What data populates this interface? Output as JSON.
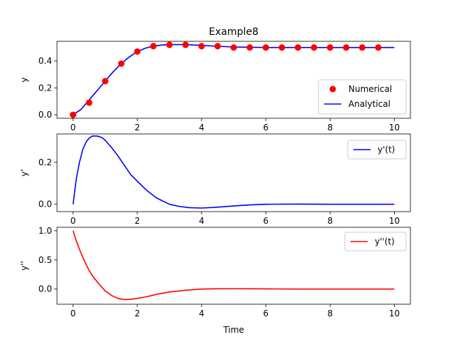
{
  "chart_data": [
    {
      "type": "scatter+line",
      "title": "Example8",
      "xlabel": "",
      "ylabel": "y",
      "xlim": [
        -0.5,
        10.5
      ],
      "ylim": [
        -0.026,
        0.546
      ],
      "xticks": [
        "0",
        "2",
        "4",
        "6",
        "8",
        "10"
      ],
      "yticks": [
        "0.0",
        "0.2",
        "0.4"
      ],
      "legend_position": "lower-right",
      "series": [
        {
          "name": "Numerical",
          "kind": "markers",
          "color": "#ff0000",
          "x": [
            0,
            0.5,
            1,
            1.5,
            2,
            2.5,
            3,
            3.5,
            4,
            4.5,
            5,
            5.5,
            6,
            6.5,
            7,
            7.5,
            8,
            8.5,
            9,
            9.5
          ],
          "y": [
            0.0,
            0.09,
            0.25,
            0.38,
            0.47,
            0.51,
            0.52,
            0.52,
            0.51,
            0.51,
            0.5,
            0.5,
            0.5,
            0.5,
            0.5,
            0.5,
            0.5,
            0.5,
            0.5,
            0.5
          ]
        },
        {
          "name": "Analytical",
          "kind": "line",
          "color": "#0000ff",
          "x": [
            0,
            0.25,
            0.5,
            0.75,
            1,
            1.25,
            1.5,
            1.75,
            2,
            2.25,
            2.5,
            2.75,
            3,
            3.5,
            4,
            4.5,
            5,
            6,
            7,
            8,
            9,
            10
          ],
          "y": [
            0.0,
            0.04,
            0.11,
            0.18,
            0.25,
            0.32,
            0.38,
            0.43,
            0.47,
            0.495,
            0.51,
            0.518,
            0.522,
            0.522,
            0.516,
            0.509,
            0.504,
            0.5,
            0.5,
            0.5,
            0.5,
            0.5
          ]
        }
      ]
    },
    {
      "type": "line",
      "title": "",
      "xlabel": "",
      "ylabel": "y'",
      "xlim": [
        -0.5,
        10.5
      ],
      "ylim": [
        -0.035,
        0.335
      ],
      "xticks": [
        "0",
        "2",
        "4",
        "6",
        "8",
        "10"
      ],
      "yticks": [
        "0.0",
        "0.2"
      ],
      "legend_position": "top-right",
      "series": [
        {
          "name": "y'(t)",
          "color": "#0000ff",
          "x": [
            0,
            0.1,
            0.2,
            0.3,
            0.4,
            0.5,
            0.6,
            0.75,
            0.9,
            1.0,
            1.2,
            1.4,
            1.6,
            1.8,
            2.0,
            2.3,
            2.6,
            3.0,
            3.3,
            3.6,
            4.0,
            4.4,
            5.0,
            5.5,
            6.0,
            7.0,
            8.0,
            9.0,
            10.0
          ],
          "y": [
            0.0,
            0.12,
            0.2,
            0.26,
            0.295,
            0.315,
            0.325,
            0.325,
            0.318,
            0.305,
            0.27,
            0.23,
            0.185,
            0.14,
            0.11,
            0.065,
            0.03,
            0.0,
            -0.01,
            -0.016,
            -0.018,
            -0.015,
            -0.008,
            -0.003,
            0.0,
            0.001,
            0.0,
            0.0,
            0.0
          ]
        }
      ]
    },
    {
      "type": "line",
      "title": "",
      "xlabel": "Time",
      "ylabel": "y''",
      "xlim": [
        -0.5,
        10.5
      ],
      "ylim": [
        -0.26,
        1.06
      ],
      "xticks": [
        "0",
        "2",
        "4",
        "6",
        "8",
        "10"
      ],
      "yticks": [
        "0.0",
        "0.5",
        "1.0"
      ],
      "legend_position": "top-right",
      "series": [
        {
          "name": "y''(t)",
          "color": "#ff0000",
          "x": [
            0,
            0.1,
            0.2,
            0.3,
            0.4,
            0.5,
            0.6,
            0.8,
            1.0,
            1.2,
            1.4,
            1.6,
            1.8,
            2.0,
            2.3,
            2.6,
            3.0,
            3.5,
            4.0,
            4.5,
            5.0,
            5.5,
            6.0,
            7.0,
            8.0,
            9.0,
            10.0
          ],
          "y": [
            1.0,
            0.83,
            0.68,
            0.55,
            0.43,
            0.32,
            0.23,
            0.09,
            -0.03,
            -0.11,
            -0.16,
            -0.18,
            -0.175,
            -0.16,
            -0.13,
            -0.09,
            -0.05,
            -0.02,
            0.0,
            0.005,
            0.006,
            0.005,
            0.003,
            0.001,
            0.0,
            0.0,
            0.0
          ]
        }
      ]
    }
  ]
}
